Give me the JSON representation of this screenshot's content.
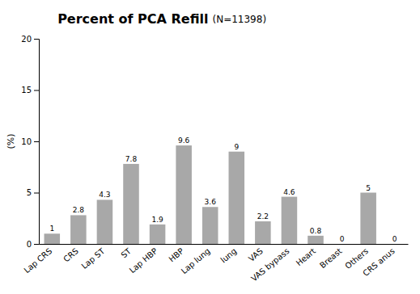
{
  "chart_data": {
    "type": "bar",
    "title": "Percent of PCA Refill",
    "subtitle": "(N=11398)",
    "categories": [
      "Lap CRS",
      "CRS",
      "Lap ST",
      "ST",
      "Lap HBP",
      "HBP",
      "Lap lung",
      "lung",
      "VAS",
      "VAS bypass",
      "Heart",
      "Breast",
      "Others",
      "CRS anus"
    ],
    "values": [
      1.0,
      2.8,
      4.3,
      7.8,
      1.9,
      9.6,
      3.6,
      9.0,
      2.2,
      4.6,
      0.8,
      0,
      5.0,
      0
    ],
    "color": "#a8a8a8",
    "ylabel": "(%)",
    "ylim": [
      0,
      20
    ],
    "yticks": [
      0,
      5,
      10,
      15,
      20
    ],
    "grid": false,
    "data_labels": true
  }
}
